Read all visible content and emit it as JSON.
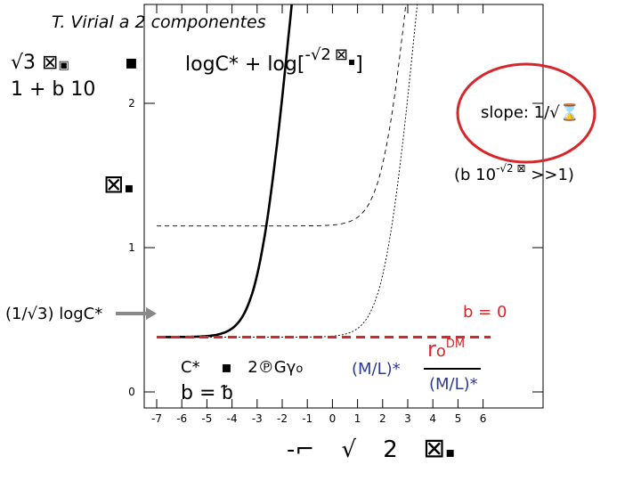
{
  "slide": {
    "title": "T. Virial a 2 componentes",
    "lhs_numerator": "√3 ⊠",
    "lhs_numerator_sub": "▣",
    "lhs_denominator": "1 + b 10",
    "equals_glyph": "▪",
    "rhs_expression": "logC* + log[",
    "rhs_power": "-√2",
    "rhs_power_glyph": "⊠",
    "rhs_power_sub": "▪",
    "rhs_close": "]",
    "slope_label": "slope:  1/√",
    "slope_glyph": "⌛",
    "limit_label": "(b 10",
    "limit_power": "-√2 ⊠",
    "limit_tail": " >>1)",
    "yaxis_label": "⊠",
    "yaxis_label_sub": "▪",
    "left_marker_label": "(1/√3) logC*",
    "b_zero_label": "b = 0",
    "cstar_def": "C*",
    "cstar_equals": "▪",
    "cstar_rhs": "2℗Gγ",
    "cstar_rhs_sub": "o",
    "b_def": "b = ",
    "b_def_glyph": "ᵬ",
    "ml_label": "(M/L)*",
    "rho_label": "r",
    "rho_sub": "o",
    "rho_sup": "DM",
    "ml_denominator": "(M/L)*",
    "xaxis_expr": "-⌐",
    "xaxis_sqrt": "√",
    "xaxis_two": "2",
    "xaxis_glyph": "⊠",
    "xaxis_glyph_sub": "▪"
  },
  "colors": {
    "annotation_red": "#d8262a",
    "ml_blue": "#2a3a9a",
    "arrow_gray": "#888888"
  },
  "chart_data": {
    "type": "line",
    "x_ticks": [
      "-7",
      "-6",
      "-5",
      "-4",
      "-3",
      "-2",
      "-1",
      "0",
      "1",
      "2",
      "3",
      "4",
      "5",
      "6"
    ],
    "y_ticks": [
      "0",
      "1",
      "2"
    ],
    "xlim": [
      -7.3,
      6.3
    ],
    "ylim": [
      -0.3,
      3.3
    ],
    "series": [
      {
        "style": "thick-solid",
        "y_floor": 0.38,
        "slope": 0.866,
        "knee_x": -2.8
      },
      {
        "style": "thin-solid",
        "y_floor": 0.38,
        "slope": 0.866,
        "knee_x": 2.2
      },
      {
        "style": "dashed",
        "y_floor": 1.15,
        "slope": 0.866,
        "knee_x": 2.2
      },
      {
        "style": "red-dashed",
        "y_value": 0.38
      }
    ]
  }
}
